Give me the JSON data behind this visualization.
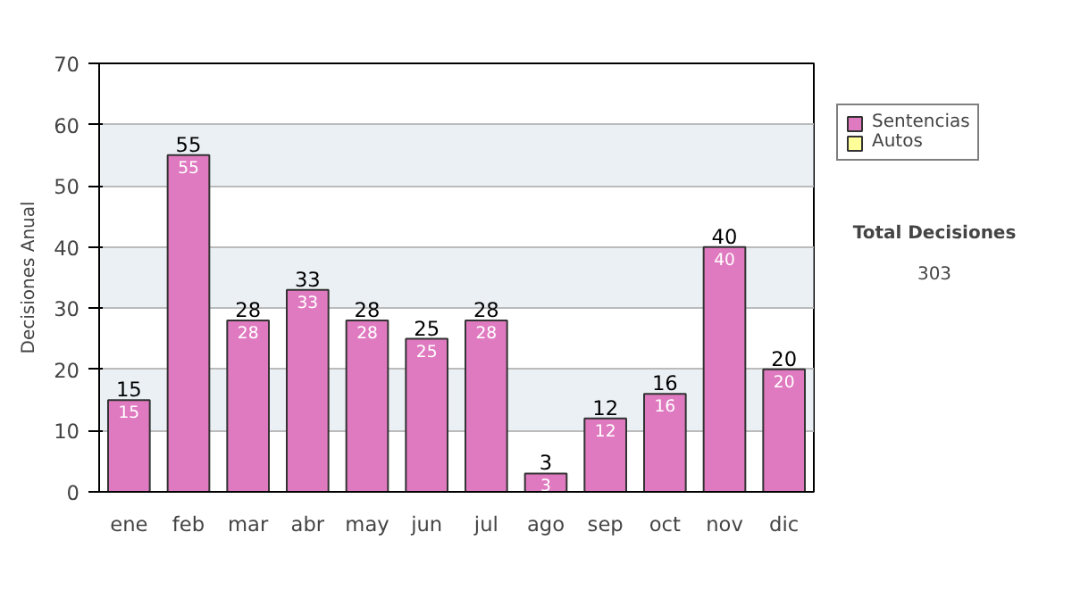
{
  "chart_data": {
    "type": "bar",
    "ylabel": "Decisiones Anual",
    "categories": [
      "ene",
      "feb",
      "mar",
      "abr",
      "may",
      "jun",
      "jul",
      "ago",
      "sep",
      "oct",
      "nov",
      "dic"
    ],
    "series": [
      {
        "name": "Sentencias",
        "color": "#e07ac0",
        "values": [
          15,
          55,
          28,
          33,
          28,
          25,
          28,
          3,
          12,
          16,
          40,
          20
        ]
      },
      {
        "name": "Autos",
        "color": "#ffff99",
        "values": [
          null,
          null,
          null,
          null,
          null,
          null,
          null,
          null,
          null,
          null,
          null,
          null
        ]
      }
    ],
    "stacked": true,
    "totals": [
      "15",
      "55",
      "28",
      "33",
      "28",
      "25",
      "28",
      "3",
      "12",
      "16",
      "40",
      "20"
    ],
    "data_labels": true,
    "ylim": [
      0,
      70
    ],
    "yticks": [
      0,
      10,
      20,
      30,
      40,
      50,
      60,
      70
    ],
    "grid": "y",
    "legend": "right",
    "annotations": [
      "Total Decisiones",
      "303"
    ]
  }
}
